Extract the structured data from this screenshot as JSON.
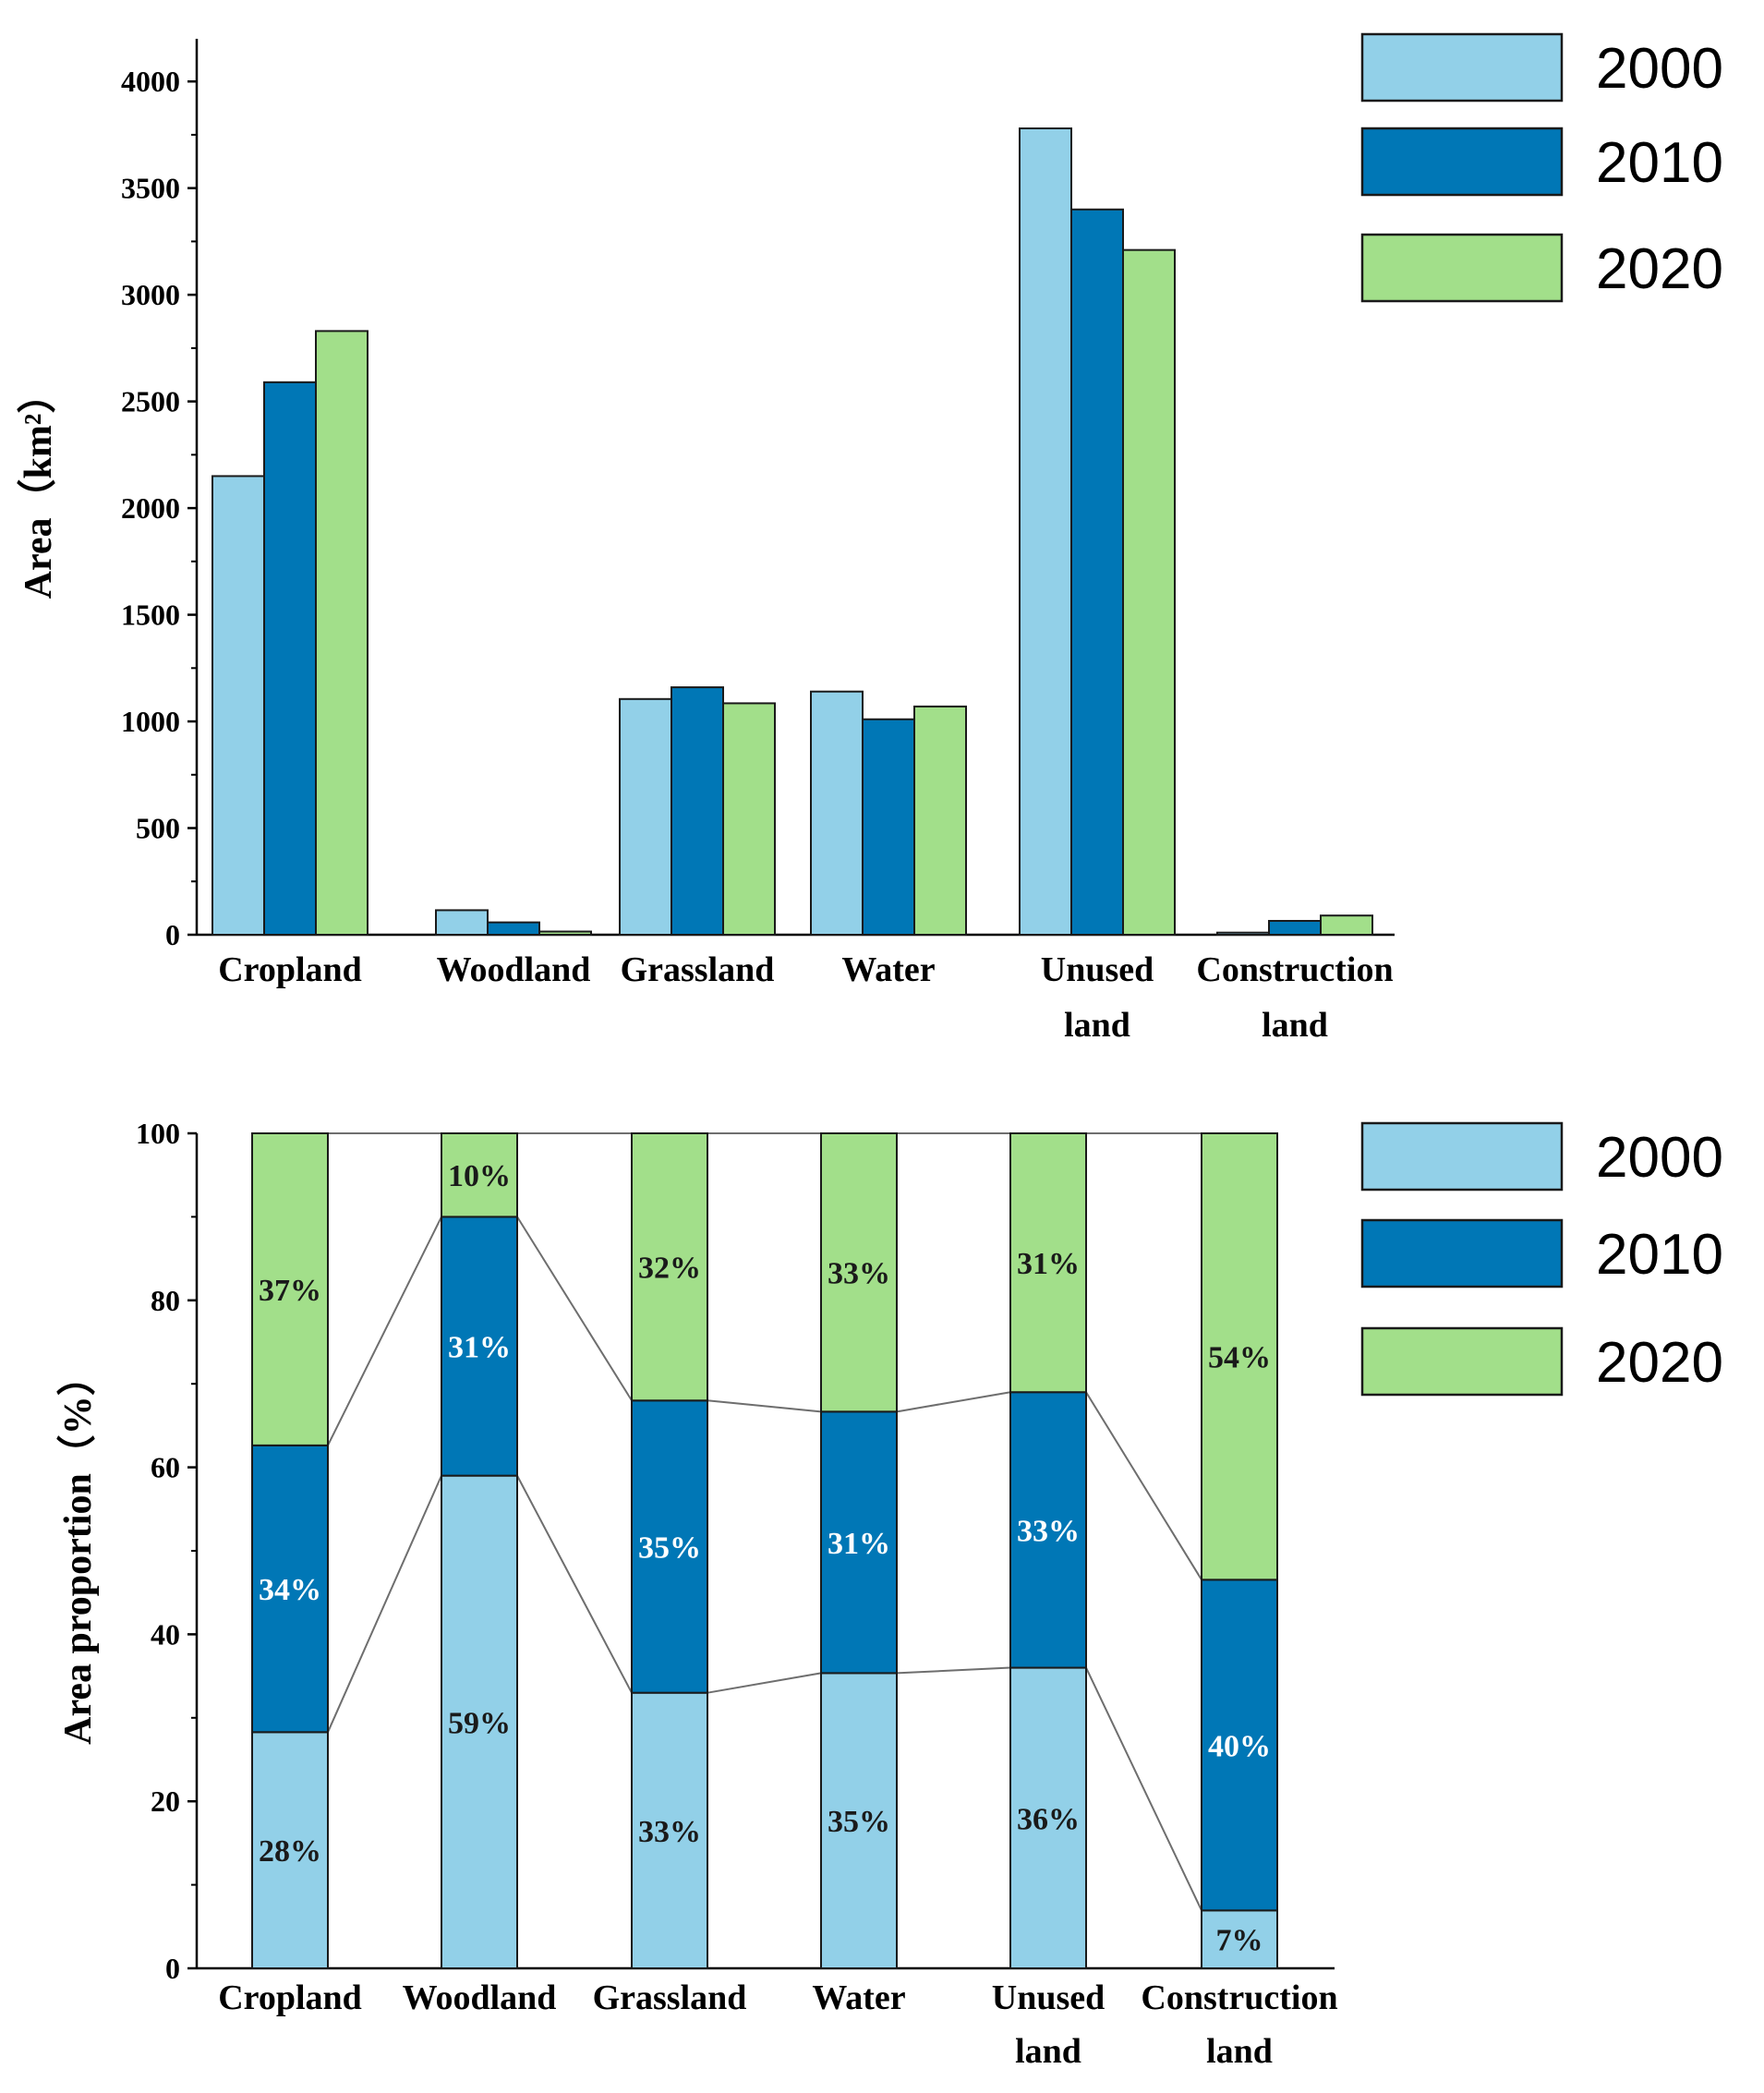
{
  "colors": {
    "y2000": "#92d0e8",
    "y2010": "#0077b6",
    "y2020": "#a2df8a"
  },
  "chart_data": [
    {
      "type": "bar",
      "title": "",
      "xlabel": "",
      "ylabel": "Area（km²）",
      "ylim": [
        0,
        4200
      ],
      "yticks": [
        0,
        500,
        1000,
        1500,
        2000,
        2500,
        3000,
        3500,
        4000
      ],
      "categories": [
        [
          "Cropland"
        ],
        [
          "Woodland"
        ],
        [
          "Grassland"
        ],
        [
          "Water"
        ],
        [
          "Unused",
          "land"
        ],
        [
          "Construction",
          "land"
        ]
      ],
      "series": [
        {
          "name": "2000",
          "values": [
            2150,
            115,
            1105,
            1140,
            3780,
            10
          ]
        },
        {
          "name": "2010",
          "values": [
            2590,
            58,
            1160,
            1010,
            3400,
            65
          ]
        },
        {
          "name": "2020",
          "values": [
            2830,
            15,
            1085,
            1070,
            3210,
            90
          ]
        }
      ],
      "legend": "top-right"
    },
    {
      "type": "bar",
      "stacked": true,
      "title": "",
      "xlabel": "",
      "ylabel": "Area proportion（%）",
      "ylim": [
        0,
        100
      ],
      "yticks": [
        0,
        20,
        40,
        60,
        80,
        100
      ],
      "categories": [
        [
          "Cropland"
        ],
        [
          "Woodland"
        ],
        [
          "Grassland"
        ],
        [
          "Water"
        ],
        [
          "Unused",
          "land"
        ],
        [
          "Construction",
          "land"
        ]
      ],
      "series": [
        {
          "name": "2000",
          "values": [
            28,
            59,
            33,
            35,
            36,
            7
          ],
          "labels": [
            "28%",
            "59%",
            "33%",
            "35%",
            "36%",
            "7%"
          ]
        },
        {
          "name": "2010",
          "values": [
            34,
            31,
            35,
            31,
            33,
            40
          ],
          "labels": [
            "34%",
            "31%",
            "35%",
            "31%",
            "33%",
            "40%"
          ]
        },
        {
          "name": "2020",
          "values": [
            37,
            10,
            32,
            33,
            31,
            54
          ],
          "labels": [
            "37%",
            "10%",
            "32%",
            "33%",
            "31%",
            "54%"
          ]
        }
      ],
      "legend": "top-right"
    }
  ]
}
